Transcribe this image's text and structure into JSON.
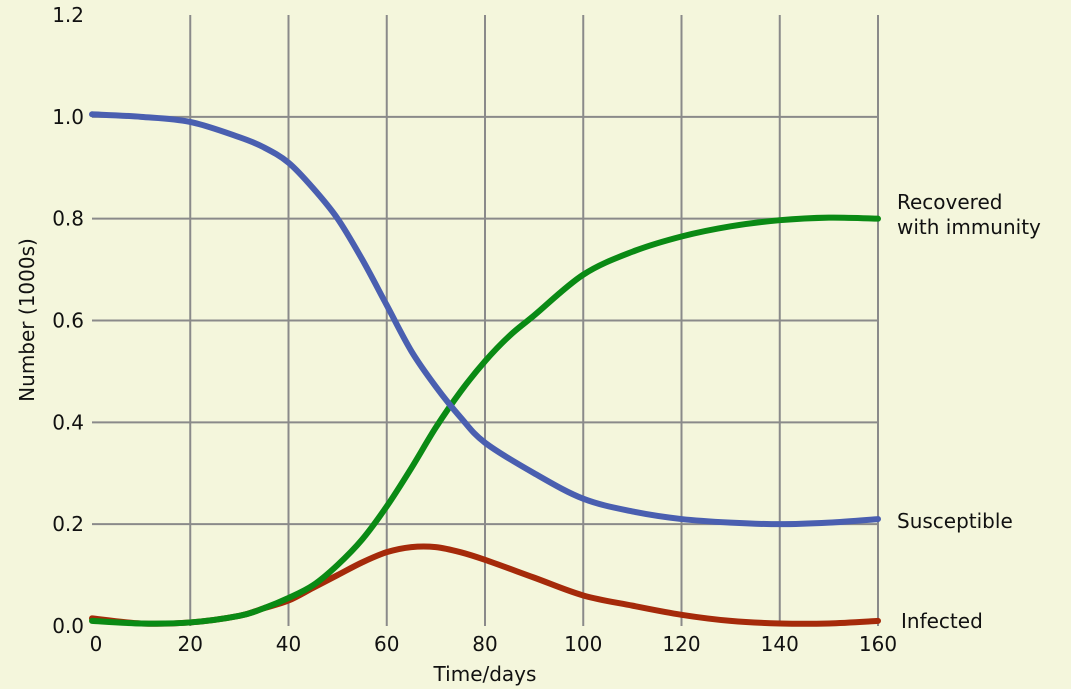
{
  "chart_data": {
    "type": "line",
    "title": "",
    "xlabel": "Time/days",
    "ylabel": "Number (1000s)",
    "xlim": [
      0,
      160
    ],
    "ylim": [
      0,
      1.2
    ],
    "x_ticks": [
      "0",
      "20",
      "40",
      "60",
      "80",
      "100",
      "120",
      "140",
      "160"
    ],
    "y_ticks": [
      "0.0",
      "0.2",
      "0.4",
      "0.6",
      "0.8",
      "1.0",
      "1.2"
    ],
    "grid": true,
    "background": "#f4f6dc",
    "grid_color": "#8a8a8a",
    "series": [
      {
        "name": "Susceptible",
        "label_lines": [
          "Susceptible"
        ],
        "color": "#4a5fb0",
        "x": [
          0,
          10,
          20,
          30,
          35,
          40,
          45,
          50,
          55,
          60,
          65,
          70,
          75,
          80,
          90,
          100,
          110,
          120,
          130,
          140,
          150,
          160
        ],
        "y": [
          1.005,
          1.0,
          0.99,
          0.96,
          0.94,
          0.91,
          0.86,
          0.8,
          0.72,
          0.63,
          0.54,
          0.47,
          0.41,
          0.36,
          0.3,
          0.25,
          0.225,
          0.21,
          0.203,
          0.2,
          0.203,
          0.21
        ]
      },
      {
        "name": "Recovered with immunity",
        "label_lines": [
          "Recovered",
          "with immunity"
        ],
        "color": "#0a8a14",
        "x": [
          0,
          10,
          20,
          30,
          35,
          40,
          45,
          50,
          55,
          60,
          65,
          70,
          75,
          80,
          85,
          90,
          100,
          110,
          120,
          130,
          140,
          150,
          160
        ],
        "y": [
          0.01,
          0.005,
          0.007,
          0.02,
          0.035,
          0.055,
          0.08,
          0.12,
          0.17,
          0.235,
          0.31,
          0.39,
          0.46,
          0.52,
          0.57,
          0.61,
          0.69,
          0.735,
          0.765,
          0.785,
          0.797,
          0.802,
          0.8
        ]
      },
      {
        "name": "Infected",
        "label_lines": [
          "Infected"
        ],
        "color": "#a52a0a",
        "x": [
          0,
          10,
          20,
          30,
          35,
          40,
          45,
          50,
          55,
          60,
          65,
          70,
          75,
          80,
          90,
          100,
          110,
          120,
          130,
          140,
          150,
          160
        ],
        "y": [
          0.015,
          0.005,
          0.007,
          0.02,
          0.035,
          0.05,
          0.075,
          0.1,
          0.125,
          0.145,
          0.155,
          0.155,
          0.145,
          0.13,
          0.095,
          0.06,
          0.04,
          0.022,
          0.01,
          0.005,
          0.005,
          0.01
        ]
      }
    ]
  }
}
